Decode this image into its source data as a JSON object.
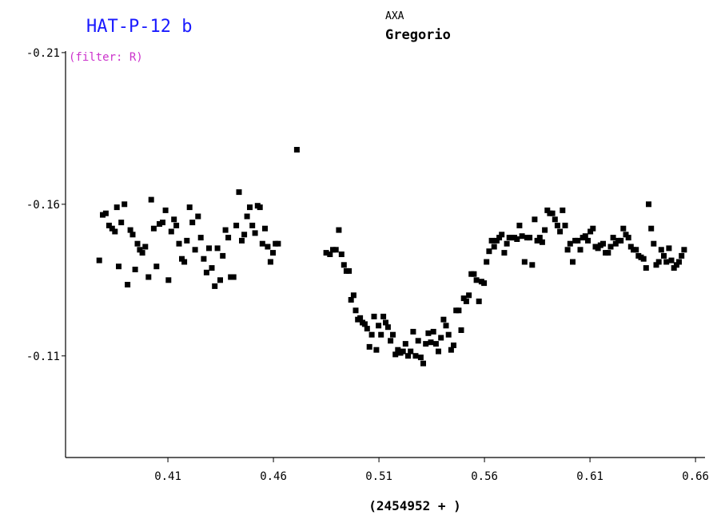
{
  "chart_data": {
    "type": "scatter",
    "title": "HAT-P-12 b",
    "observer_top": "AXA",
    "observer_name": "Gregorio",
    "filter_note": "(filter: R)",
    "xlabel": "(2454952 + )",
    "ylabel": "",
    "xlim": [
      0.3615,
      0.6645
    ],
    "ylim": [
      -0.0765,
      -0.2105
    ],
    "y_inverted": true,
    "grid": false,
    "x_ticks": [
      0.41,
      0.46,
      0.51,
      0.56,
      0.61,
      0.66
    ],
    "x_tick_labels": [
      "0.41",
      "0.46",
      "0.51",
      "0.56",
      "0.61",
      "0.66"
    ],
    "y_ticks": [
      -0.21,
      -0.16,
      -0.11
    ],
    "y_tick_labels": [
      "-0.21",
      "-0.16",
      "-0.11"
    ],
    "marker_color": "#000000",
    "title_color": "#1a1aff",
    "filter_color": "#cc33cc",
    "points": [
      [
        0.3775,
        -0.1415
      ],
      [
        0.3791,
        -0.1565
      ],
      [
        0.3806,
        -0.157
      ],
      [
        0.3821,
        -0.153
      ],
      [
        0.3836,
        -0.152
      ],
      [
        0.3849,
        -0.151
      ],
      [
        0.3858,
        -0.159
      ],
      [
        0.3867,
        -0.1395
      ],
      [
        0.3879,
        -0.154
      ],
      [
        0.3894,
        -0.16
      ],
      [
        0.3909,
        -0.1335
      ],
      [
        0.3922,
        -0.1515
      ],
      [
        0.3933,
        -0.15
      ],
      [
        0.3945,
        -0.1385
      ],
      [
        0.3956,
        -0.147
      ],
      [
        0.3967,
        -0.145
      ],
      [
        0.3979,
        -0.144
      ],
      [
        0.3993,
        -0.146
      ],
      [
        0.4008,
        -0.136
      ],
      [
        0.4021,
        -0.1615
      ],
      [
        0.4033,
        -0.152
      ],
      [
        0.4046,
        -0.1395
      ],
      [
        0.406,
        -0.1535
      ],
      [
        0.4075,
        -0.154
      ],
      [
        0.4089,
        -0.158
      ],
      [
        0.4103,
        -0.135
      ],
      [
        0.4116,
        -0.151
      ],
      [
        0.4129,
        -0.155
      ],
      [
        0.414,
        -0.153
      ],
      [
        0.4153,
        -0.147
      ],
      [
        0.4166,
        -0.142
      ],
      [
        0.4178,
        -0.141
      ],
      [
        0.419,
        -0.148
      ],
      [
        0.4203,
        -0.159
      ],
      [
        0.4216,
        -0.154
      ],
      [
        0.4229,
        -0.145
      ],
      [
        0.4243,
        -0.156
      ],
      [
        0.4256,
        -0.149
      ],
      [
        0.427,
        -0.142
      ],
      [
        0.4283,
        -0.1375
      ],
      [
        0.4295,
        -0.1455
      ],
      [
        0.4308,
        -0.139
      ],
      [
        0.4322,
        -0.133
      ],
      [
        0.4335,
        -0.1455
      ],
      [
        0.4348,
        -0.135
      ],
      [
        0.436,
        -0.143
      ],
      [
        0.4373,
        -0.1515
      ],
      [
        0.4386,
        -0.149
      ],
      [
        0.4398,
        -0.136
      ],
      [
        0.4411,
        -0.136
      ],
      [
        0.4424,
        -0.153
      ],
      [
        0.4437,
        -0.164
      ],
      [
        0.445,
        -0.148
      ],
      [
        0.4462,
        -0.15
      ],
      [
        0.4475,
        -0.156
      ],
      [
        0.4488,
        -0.159
      ],
      [
        0.45,
        -0.153
      ],
      [
        0.4513,
        -0.1505
      ],
      [
        0.4525,
        -0.1595
      ],
      [
        0.4536,
        -0.159
      ],
      [
        0.4548,
        -0.147
      ],
      [
        0.456,
        -0.152
      ],
      [
        0.4573,
        -0.146
      ],
      [
        0.4586,
        -0.141
      ],
      [
        0.4598,
        -0.144
      ],
      [
        0.461,
        -0.147
      ],
      [
        0.4622,
        -0.147
      ],
      [
        0.4711,
        -0.178
      ],
      [
        0.485,
        -0.144
      ],
      [
        0.4868,
        -0.1435
      ],
      [
        0.4882,
        -0.145
      ],
      [
        0.4896,
        -0.145
      ],
      [
        0.491,
        -0.1515
      ],
      [
        0.4923,
        -0.1435
      ],
      [
        0.4934,
        -0.14
      ],
      [
        0.4946,
        -0.138
      ],
      [
        0.4958,
        -0.138
      ],
      [
        0.4968,
        -0.1285
      ],
      [
        0.498,
        -0.13
      ],
      [
        0.499,
        -0.125
      ],
      [
        0.5,
        -0.122
      ],
      [
        0.5011,
        -0.1225
      ],
      [
        0.5022,
        -0.121
      ],
      [
        0.5033,
        -0.1205
      ],
      [
        0.5044,
        -0.119
      ],
      [
        0.5055,
        -0.113
      ],
      [
        0.5066,
        -0.117
      ],
      [
        0.5077,
        -0.123
      ],
      [
        0.5088,
        -0.112
      ],
      [
        0.5098,
        -0.12
      ],
      [
        0.511,
        -0.117
      ],
      [
        0.5121,
        -0.123
      ],
      [
        0.5132,
        -0.121
      ],
      [
        0.5143,
        -0.1195
      ],
      [
        0.5155,
        -0.115
      ],
      [
        0.5166,
        -0.117
      ],
      [
        0.5178,
        -0.1105
      ],
      [
        0.519,
        -0.112
      ],
      [
        0.5202,
        -0.111
      ],
      [
        0.5214,
        -0.1115
      ],
      [
        0.5226,
        -0.114
      ],
      [
        0.5238,
        -0.11
      ],
      [
        0.525,
        -0.1115
      ],
      [
        0.5262,
        -0.118
      ],
      [
        0.5274,
        -0.11
      ],
      [
        0.5286,
        -0.115
      ],
      [
        0.5298,
        -0.1095
      ],
      [
        0.531,
        -0.1075
      ],
      [
        0.5322,
        -0.114
      ],
      [
        0.5334,
        -0.1175
      ],
      [
        0.5346,
        -0.1145
      ],
      [
        0.5358,
        -0.118
      ],
      [
        0.537,
        -0.114
      ],
      [
        0.5382,
        -0.1115
      ],
      [
        0.5394,
        -0.116
      ],
      [
        0.5406,
        -0.122
      ],
      [
        0.5418,
        -0.12
      ],
      [
        0.543,
        -0.117
      ],
      [
        0.5442,
        -0.112
      ],
      [
        0.5454,
        -0.1135
      ],
      [
        0.5466,
        -0.125
      ],
      [
        0.5478,
        -0.125
      ],
      [
        0.549,
        -0.1185
      ],
      [
        0.5502,
        -0.129
      ],
      [
        0.5514,
        -0.128
      ],
      [
        0.5526,
        -0.13
      ],
      [
        0.5538,
        -0.137
      ],
      [
        0.555,
        -0.137
      ],
      [
        0.5562,
        -0.135
      ],
      [
        0.5574,
        -0.128
      ],
      [
        0.5586,
        -0.1345
      ],
      [
        0.5598,
        -0.134
      ],
      [
        0.561,
        -0.141
      ],
      [
        0.5622,
        -0.1445
      ],
      [
        0.5634,
        -0.148
      ],
      [
        0.5646,
        -0.146
      ],
      [
        0.5658,
        -0.148
      ],
      [
        0.567,
        -0.149
      ],
      [
        0.5682,
        -0.15
      ],
      [
        0.5694,
        -0.144
      ],
      [
        0.5706,
        -0.147
      ],
      [
        0.5718,
        -0.149
      ],
      [
        0.573,
        -0.149
      ],
      [
        0.5742,
        -0.149
      ],
      [
        0.5754,
        -0.1485
      ],
      [
        0.5766,
        -0.153
      ],
      [
        0.5778,
        -0.1495
      ],
      [
        0.579,
        -0.141
      ],
      [
        0.5802,
        -0.149
      ],
      [
        0.5814,
        -0.149
      ],
      [
        0.5826,
        -0.14
      ],
      [
        0.5838,
        -0.155
      ],
      [
        0.585,
        -0.148
      ],
      [
        0.5862,
        -0.149
      ],
      [
        0.5874,
        -0.1475
      ],
      [
        0.5886,
        -0.1515
      ],
      [
        0.5898,
        -0.158
      ],
      [
        0.591,
        -0.157
      ],
      [
        0.5922,
        -0.157
      ],
      [
        0.5934,
        -0.155
      ],
      [
        0.5946,
        -0.153
      ],
      [
        0.5958,
        -0.151
      ],
      [
        0.597,
        -0.158
      ],
      [
        0.5982,
        -0.153
      ],
      [
        0.5994,
        -0.145
      ],
      [
        0.6006,
        -0.147
      ],
      [
        0.6018,
        -0.141
      ],
      [
        0.603,
        -0.148
      ],
      [
        0.6042,
        -0.148
      ],
      [
        0.6054,
        -0.145
      ],
      [
        0.6066,
        -0.149
      ],
      [
        0.6078,
        -0.1495
      ],
      [
        0.609,
        -0.148
      ],
      [
        0.6102,
        -0.151
      ],
      [
        0.6114,
        -0.152
      ],
      [
        0.6126,
        -0.146
      ],
      [
        0.6138,
        -0.1455
      ],
      [
        0.615,
        -0.1465
      ],
      [
        0.6162,
        -0.147
      ],
      [
        0.6174,
        -0.144
      ],
      [
        0.6186,
        -0.144
      ],
      [
        0.6198,
        -0.146
      ],
      [
        0.621,
        -0.149
      ],
      [
        0.6222,
        -0.147
      ],
      [
        0.6234,
        -0.148
      ],
      [
        0.6246,
        -0.148
      ],
      [
        0.6258,
        -0.152
      ],
      [
        0.627,
        -0.15
      ],
      [
        0.6282,
        -0.149
      ],
      [
        0.6294,
        -0.146
      ],
      [
        0.6306,
        -0.145
      ],
      [
        0.6318,
        -0.145
      ],
      [
        0.633,
        -0.143
      ],
      [
        0.6342,
        -0.1425
      ],
      [
        0.6354,
        -0.142
      ],
      [
        0.6366,
        -0.139
      ],
      [
        0.6378,
        -0.16
      ],
      [
        0.639,
        -0.152
      ],
      [
        0.6402,
        -0.147
      ],
      [
        0.6414,
        -0.14
      ],
      [
        0.6426,
        -0.141
      ],
      [
        0.6438,
        -0.145
      ],
      [
        0.645,
        -0.143
      ],
      [
        0.6462,
        -0.141
      ],
      [
        0.6474,
        -0.1455
      ],
      [
        0.6486,
        -0.1415
      ],
      [
        0.6498,
        -0.139
      ],
      [
        0.651,
        -0.14
      ],
      [
        0.6522,
        -0.141
      ],
      [
        0.6534,
        -0.143
      ],
      [
        0.6546,
        -0.145
      ]
    ]
  }
}
